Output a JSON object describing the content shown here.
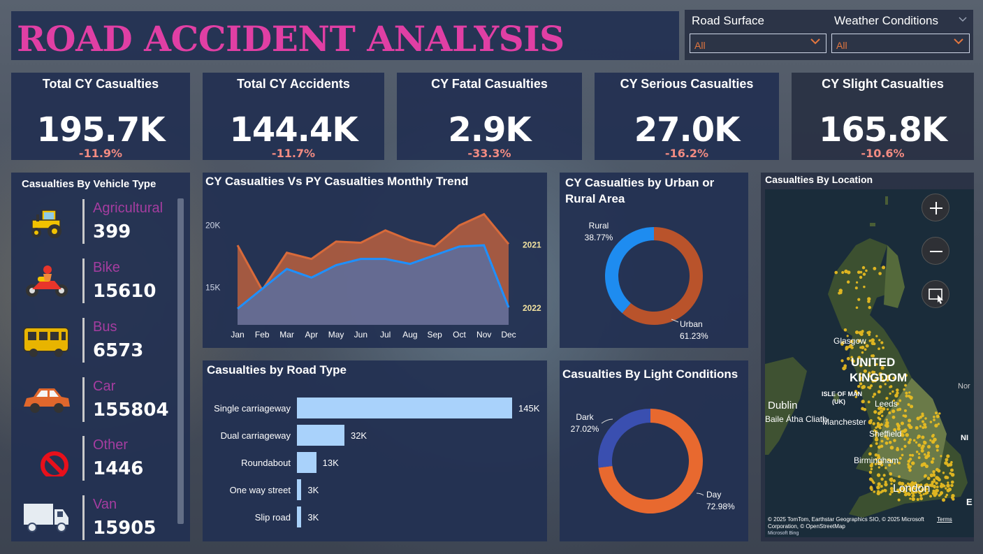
{
  "header": {
    "title": "ROAD ACCIDENT ANALYSIS",
    "filters": [
      {
        "label": "Road Surface",
        "value": "All"
      },
      {
        "label": "Weather Conditions",
        "value": "All"
      }
    ]
  },
  "kpis": [
    {
      "label": "Total CY Casualties",
      "value": "195.7K",
      "change": "-11.9%"
    },
    {
      "label": "Total CY Accidents",
      "value": "144.4K",
      "change": "-11.7%"
    },
    {
      "label": "CY Fatal Casualties",
      "value": "2.9K",
      "change": "-33.3%"
    },
    {
      "label": "CY Serious Casualties",
      "value": "27.0K",
      "change": "-16.2%"
    },
    {
      "label": "CY Slight Casualties",
      "value": "165.8K",
      "change": "-10.6%"
    }
  ],
  "vehicle": {
    "title": "Casualties By Vehicle Type",
    "items": [
      {
        "name": "Agricultural",
        "value": "399",
        "icon": "tractor-icon"
      },
      {
        "name": "Bike",
        "value": "15610",
        "icon": "motorbike-icon"
      },
      {
        "name": "Bus",
        "value": "6573",
        "icon": "bus-icon"
      },
      {
        "name": "Car",
        "value": "155804",
        "icon": "car-icon"
      },
      {
        "name": "Other",
        "value": "1446",
        "icon": "no-entry-icon"
      },
      {
        "name": "Van",
        "value": "15905",
        "icon": "van-icon"
      }
    ]
  },
  "trend": {
    "title": "CY Casualties Vs PY Casualties Monthly Trend"
  },
  "urban": {
    "title": "CY Casualties by Urban or Rural Area"
  },
  "road": {
    "title": "Casualties by Road Type"
  },
  "light": {
    "title": "Casualties By Light Conditions"
  },
  "map": {
    "title": "Casualties By Location",
    "labels": {
      "country": "UNITED",
      "country2": "KINGDOM",
      "glasgow": "Glasgow",
      "isle": "ISLE OF MAN",
      "isle2": "(UK)",
      "dublin": "Dublin",
      "dublin2": "Baile Átha Cliath",
      "manchester": "Manchester",
      "leeds": "Leeds",
      "sheffield": "Sheffield",
      "birmingham": "Birmingham",
      "london": "London",
      "nor": "Nor",
      "ni": "NI",
      "e": "E"
    },
    "attribution": "© 2025 TomTom, Earthstar Geographics SIO, © 2025 Microsoft Corporation, © OpenStreetMap",
    "terms": "Terms",
    "brand": "Microsoft Bing"
  },
  "chart_data": [
    {
      "type": "area",
      "title": "CY Casualties Vs PY Casualties Monthly Trend",
      "categories": [
        "Jan",
        "Feb",
        "Mar",
        "Apr",
        "May",
        "Jun",
        "Jul",
        "Aug",
        "Sep",
        "Oct",
        "Nov",
        "Dec"
      ],
      "y_ticks": [
        "15K",
        "20K"
      ],
      "ylim": [
        12000,
        22000
      ],
      "series": [
        {
          "name": "2021",
          "color": "#d86a3a",
          "values": [
            18400,
            14800,
            17800,
            17300,
            18700,
            18600,
            19600,
            18800,
            18300,
            20000,
            20900,
            18500
          ]
        },
        {
          "name": "2022",
          "color": "#1e90ff",
          "values": [
            13300,
            14900,
            16500,
            15800,
            16800,
            17300,
            17300,
            16900,
            17600,
            18300,
            18400,
            13400
          ]
        }
      ]
    },
    {
      "type": "pie",
      "title": "CY Casualties by Urban or Rural Area",
      "labels": [
        "Urban",
        "Rural"
      ],
      "display": [
        "61.23%",
        "38.77%"
      ],
      "values": [
        61.23,
        38.77
      ],
      "colors": [
        "#b9532b",
        "#1e8cf0"
      ]
    },
    {
      "type": "bar",
      "title": "Casualties by Road Type",
      "categories": [
        "Single carriageway",
        "Dual carriageway",
        "Roundabout",
        "One way street",
        "Slip road"
      ],
      "values": [
        145,
        32,
        13,
        3,
        3
      ],
      "labels": [
        "145K",
        "32K",
        "13K",
        "3K",
        "3K"
      ],
      "color": "#a9d2fb"
    },
    {
      "type": "pie",
      "title": "Casualties By Light Conditions",
      "labels": [
        "Day",
        "Dark"
      ],
      "display": [
        "72.98%",
        "27.02%"
      ],
      "values": [
        72.98,
        27.02
      ],
      "colors": [
        "#e8692f",
        "#3a4fb0"
      ]
    }
  ]
}
